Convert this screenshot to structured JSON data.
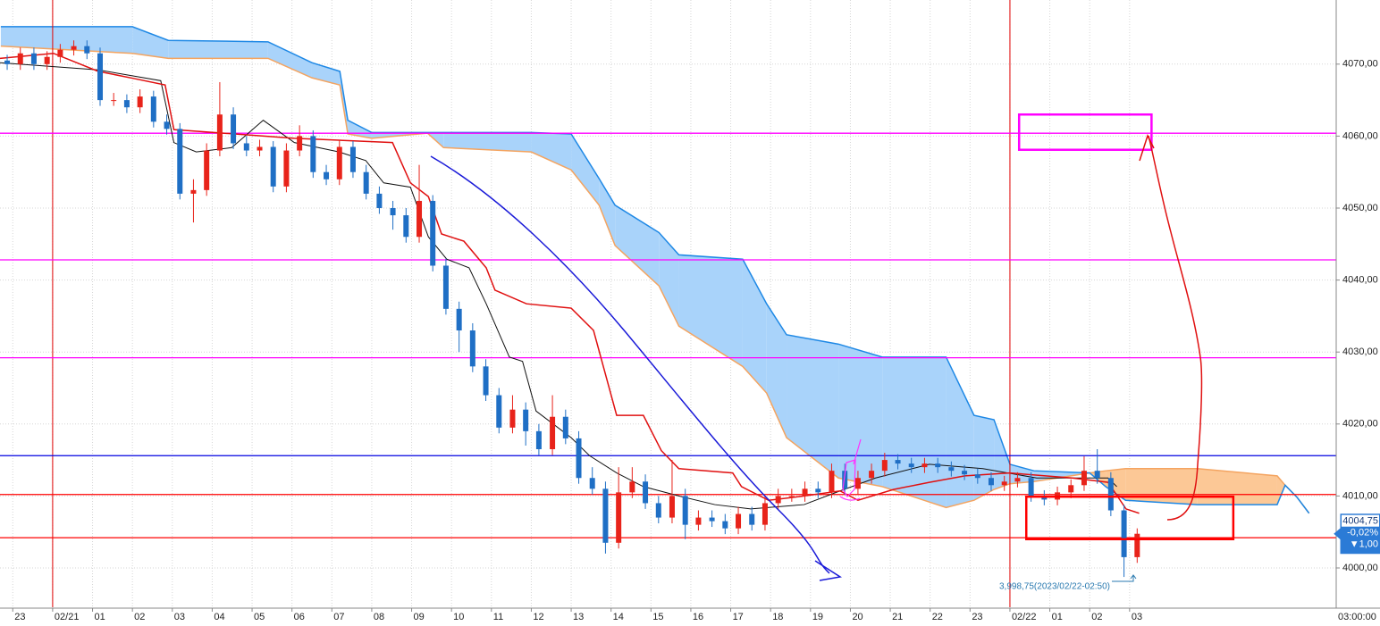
{
  "chart_data": {
    "type": "candlestick",
    "xlim": [
      -0.32,
      33.18
    ],
    "ylim": [
      3994.54,
      4078.91
    ],
    "xticks": [
      {
        "value": 0,
        "label": "23"
      },
      {
        "value": 1,
        "label": "02/21"
      },
      {
        "value": 2,
        "label": "01"
      },
      {
        "value": 3,
        "label": "02"
      },
      {
        "value": 4,
        "label": "03"
      },
      {
        "value": 5,
        "label": "04"
      },
      {
        "value": 6,
        "label": "05"
      },
      {
        "value": 7,
        "label": "06"
      },
      {
        "value": 8,
        "label": "07"
      },
      {
        "value": 9,
        "label": "08"
      },
      {
        "value": 10,
        "label": "09"
      },
      {
        "value": 11,
        "label": "10"
      },
      {
        "value": 12,
        "label": "11"
      },
      {
        "value": 13,
        "label": "12"
      },
      {
        "value": 14,
        "label": "13"
      },
      {
        "value": 15,
        "label": "14"
      },
      {
        "value": 16,
        "label": "15"
      },
      {
        "value": 17,
        "label": "16"
      },
      {
        "value": 18,
        "label": "17"
      },
      {
        "value": 19,
        "label": "18"
      },
      {
        "value": 20,
        "label": "19"
      },
      {
        "value": 21,
        "label": "20"
      },
      {
        "value": 22,
        "label": "21"
      },
      {
        "value": 23,
        "label": "22"
      },
      {
        "value": 24,
        "label": "23"
      },
      {
        "value": 25,
        "label": "02/22"
      },
      {
        "value": 26,
        "label": "01"
      },
      {
        "value": 27,
        "label": "02"
      },
      {
        "value": 28,
        "label": "03"
      }
    ],
    "x_end_label": "03:00:00",
    "yticks": [
      {
        "value": 4000,
        "label": "4000,00"
      },
      {
        "value": 4010,
        "label": "4010,00"
      },
      {
        "value": 4020,
        "label": "4020,00"
      },
      {
        "value": 4030,
        "label": "4030,00"
      },
      {
        "value": 4040,
        "label": "4040,00"
      },
      {
        "value": 4050,
        "label": "4050,00"
      },
      {
        "value": 4060,
        "label": "4060,00"
      },
      {
        "value": 4070,
        "label": "4070,00"
      }
    ],
    "grid": true,
    "day_lines": [
      1,
      25
    ],
    "day_line_color": "#e00000",
    "candles": {
      "up_color": "#e8231a",
      "down_color": "#1f6fc5",
      "x": [
        -0.14,
        0.19,
        0.53,
        0.86,
        1.19,
        1.53,
        1.86,
        2.19,
        2.53,
        2.86,
        3.19,
        3.53,
        3.86,
        4.19,
        4.53,
        4.86,
        5.19,
        5.53,
        5.86,
        6.19,
        6.53,
        6.86,
        7.19,
        7.53,
        7.86,
        8.19,
        8.53,
        8.86,
        9.19,
        9.53,
        9.86,
        10.19,
        10.53,
        10.86,
        11.19,
        11.53,
        11.86,
        12.19,
        12.53,
        12.86,
        13.19,
        13.53,
        13.86,
        14.19,
        14.53,
        14.86,
        15.19,
        15.53,
        15.86,
        16.19,
        16.53,
        16.86,
        17.19,
        17.53,
        17.86,
        18.19,
        18.53,
        18.86,
        19.19,
        19.53,
        19.86,
        20.19,
        20.53,
        20.86,
        21.19,
        21.53,
        21.86,
        22.19,
        22.53,
        22.86,
        23.19,
        23.53,
        23.86,
        24.19,
        24.53,
        24.86,
        25.19,
        25.53,
        25.86,
        26.19,
        26.53,
        26.86,
        27.19,
        27.53,
        27.86,
        28.19
      ],
      "open": [
        4070.5,
        4070,
        4071.5,
        4070,
        4071,
        4072,
        4072.5,
        4071.5,
        4065,
        4065,
        4064,
        4065.5,
        4062,
        4061,
        4052,
        4052.5,
        4058,
        4063,
        4059,
        4058,
        4058.5,
        4053,
        4058,
        4060,
        4055,
        4054,
        4058.5,
        4055,
        4052,
        4050,
        4049,
        4046,
        4051,
        4042,
        4036,
        4033,
        4028,
        4024,
        4019.5,
        4022,
        4019,
        4016.5,
        4021,
        4018,
        4012.5,
        4011,
        4003.5,
        4010.5,
        4012,
        4009,
        4007,
        4010,
        4006,
        4007,
        4006.5,
        4005.5,
        4007.5,
        4006,
        4009,
        4010,
        4010,
        4011,
        4010.5,
        4013.5,
        4011,
        4012.5,
        4013.5,
        4015,
        4014.5,
        4014,
        4014.5,
        4014,
        4013.5,
        4013,
        4012.5,
        4011.5,
        4012,
        4012.5,
        4010,
        4009.5,
        4010.5,
        4011.5,
        4013.5,
        4012.5,
        4008,
        4001.5
      ],
      "high": [
        4071.3,
        4072.3,
        4072.3,
        4071.8,
        4072.8,
        4073.3,
        4073.3,
        4072.3,
        4066,
        4065.8,
        4066.5,
        4066.3,
        4063,
        4061.8,
        4054,
        4059,
        4067.5,
        4064,
        4060,
        4059.5,
        4059.3,
        4059,
        4061.5,
        4060.8,
        4056,
        4059.5,
        4059.3,
        4056,
        4053,
        4051,
        4050,
        4056,
        4051.8,
        4043,
        4037,
        4034,
        4029,
        4025,
        4024,
        4023,
        4020,
        4024,
        4022,
        4019,
        4014,
        4012,
        4014,
        4014,
        4013,
        4010,
        4015,
        4011,
        4008,
        4008,
        4007.5,
        4008.5,
        4008.5,
        4010,
        4011,
        4011,
        4012,
        4012,
        4014.5,
        4014.5,
        4013.5,
        4014.5,
        4016,
        4015.8,
        4015.3,
        4015.3,
        4015.3,
        4014.8,
        4014.3,
        4013.8,
        4013.3,
        4012.8,
        4013.3,
        4013.3,
        4010.8,
        4011.3,
        4012.3,
        4015.5,
        4016.5,
        4013.3,
        4008.8,
        4005.5
      ],
      "low": [
        4069.2,
        4069.2,
        4069.2,
        4069.2,
        4070.2,
        4071.2,
        4070.7,
        4064.2,
        4064.2,
        4063.2,
        4063.2,
        4061.2,
        4060.2,
        4051.2,
        4048,
        4051.7,
        4057.2,
        4058.2,
        4057.2,
        4057.2,
        4052.2,
        4052.2,
        4057.2,
        4054.2,
        4053.2,
        4053.2,
        4054.2,
        4051.2,
        4049.2,
        4047,
        4045.2,
        4045.2,
        4041.2,
        4035.2,
        4030,
        4027.2,
        4023.2,
        4018.7,
        4018.7,
        4017,
        4015.7,
        4015.7,
        4017.2,
        4011.7,
        4010.2,
        4002,
        4002.7,
        4009.7,
        4008.2,
        4006.2,
        4006.2,
        4004,
        4005.2,
        4005.7,
        4004.7,
        4004.7,
        4005.2,
        4005.2,
        4008.2,
        4009.2,
        4009.2,
        4009.7,
        4009.7,
        4010.2,
        4010.2,
        4011.7,
        4012.7,
        4013.7,
        4013.2,
        4013.2,
        4013.2,
        4012.7,
        4012.2,
        4011.7,
        4010.7,
        4010.7,
        4011.2,
        4009.2,
        4008.7,
        4008.7,
        4009.7,
        4010.7,
        4011.7,
        4007.2,
        3998.75,
        4000.7
      ],
      "close": [
        4070,
        4071.5,
        4070,
        4071,
        4072,
        4072.5,
        4071.5,
        4065,
        4065,
        4064,
        4065.5,
        4062,
        4061,
        4052,
        4052.5,
        4058,
        4063,
        4059,
        4058,
        4058.5,
        4053,
        4058,
        4060,
        4055,
        4054,
        4058.5,
        4055,
        4052,
        4050,
        4049,
        4046,
        4051,
        4042,
        4036,
        4033,
        4028,
        4024,
        4019.5,
        4022,
        4019,
        4016.5,
        4021,
        4018,
        4012.5,
        4011,
        4003.5,
        4010.5,
        4012,
        4009,
        4007,
        4010,
        4006,
        4007,
        4006.5,
        4005.5,
        4007.5,
        4006,
        4009,
        4010,
        4010,
        4011,
        4010.5,
        4013.5,
        4011,
        4012.5,
        4013.5,
        4015,
        4014.5,
        4014,
        4014.5,
        4014,
        4013.5,
        4013,
        4012.5,
        4011.5,
        4012,
        4012.5,
        4010,
        4009.5,
        4010.5,
        4011.5,
        4013.5,
        4012.5,
        4008,
        4001.5,
        4004.75
      ]
    },
    "cloud": {
      "span_a_color": "#1e88e5",
      "span_b_color": "#f4a460",
      "fill_up": "#a9d3fa",
      "fill_down": "#fcc896",
      "x": [
        -0.3,
        3,
        3.9,
        6.4,
        7.5,
        8.2,
        8.4,
        9,
        10.4,
        10.8,
        13,
        14,
        14.7,
        15.1,
        16.2,
        16.7,
        18.3,
        18.9,
        19.4,
        20.7,
        21.8,
        23.4,
        24.1,
        24.6,
        25,
        25.6,
        27,
        27.4,
        27.9,
        29.7,
        31.7,
        31.9,
        32.2,
        32.5
      ],
      "span_a": [
        4075.2,
        4075.2,
        4073.3,
        4073.1,
        4070.2,
        4069,
        4062.2,
        4060.5,
        4060.5,
        4060.5,
        4060.5,
        4060.3,
        4054.1,
        4050.4,
        4046.6,
        4043.5,
        4042.9,
        4036.7,
        4032.4,
        4031.1,
        4029.3,
        4029.3,
        4021.2,
        4020.6,
        4014.4,
        4013.5,
        4013.2,
        4011.3,
        4009.4,
        4008.8,
        4008.8,
        4011.5,
        4009.8,
        4007.6
      ],
      "span_b": [
        4072.5,
        4071.5,
        4070.8,
        4070.8,
        4068.1,
        4067.1,
        4060.3,
        4059.7,
        4060.4,
        4058.4,
        4057.8,
        4055.3,
        4050.4,
        4044.8,
        4039.2,
        4033.6,
        4028,
        4024.3,
        4018.1,
        4012.5,
        4011.3,
        4008.4,
        4009.4,
        4010.9,
        4011.7,
        4012,
        4013.2,
        4013.5,
        4013.8,
        4013.8,
        4012.8,
        4011.5,
        4009.8,
        4007.6
      ]
    },
    "base_line": {
      "color": "#e01010",
      "x": [
        -0.32,
        1.02,
        2.14,
        3.04,
        3.82,
        4.04,
        7.06,
        9.52,
        9.97,
        10.42,
        10.75,
        11.31,
        11.87,
        12.09,
        12.88,
        14.0,
        14.56,
        15.14,
        15.81,
        16.26,
        16.7,
        18.05,
        18.27,
        18.95,
        19.84,
        20.74,
        21.19,
        22.08,
        22.98,
        23.87,
        24.99,
        26.56,
        27.46,
        27.91,
        28.24
      ],
      "values": [
        4070.8,
        4071.5,
        4069,
        4068,
        4067.1,
        4060.9,
        4059.7,
        4059.1,
        4053.5,
        4051.6,
        4046.4,
        4045.4,
        4041.7,
        4038.6,
        4036.7,
        4036.1,
        4033,
        4021.2,
        4021.2,
        4016.3,
        4013.8,
        4013.2,
        4011.3,
        4009.4,
        4010,
        4010.7,
        4009.4,
        4010.9,
        4011.9,
        4012.8,
        4013.2,
        4012.5,
        4011.9,
        4008.2,
        4007.6
      ]
    },
    "conversion_line": {
      "color": "#111111",
      "x": [
        -0.32,
        2.14,
        3.71,
        4.04,
        4.6,
        5.49,
        6.28,
        7.06,
        8.18,
        8.85,
        9.3,
        9.97,
        10.42,
        10.88,
        11.44,
        11.87,
        12.45,
        12.78,
        13.12,
        14.0,
        14.46,
        15.14,
        15.81,
        16.7,
        17.6,
        18.5,
        19.84,
        20.74,
        21.63,
        22.98,
        24.32,
        25.67,
        27.46,
        27.68
      ],
      "values": [
        4070.2,
        4069.2,
        4067.7,
        4059.1,
        4057.8,
        4058.4,
        4062.2,
        4059.1,
        4057.8,
        4056.6,
        4053.5,
        4052.9,
        4046,
        4042.9,
        4041.7,
        4036.7,
        4029.3,
        4028.7,
        4021.8,
        4018.1,
        4015.6,
        4013.2,
        4011.3,
        4010,
        4008.8,
        4008.2,
        4008.8,
        4010.7,
        4012.5,
        4014.4,
        4013.8,
        4012.5,
        4012.5,
        4011.3
      ]
    },
    "hlines": [
      {
        "value": 4060.4,
        "color": "#ff00ff"
      },
      {
        "value": 4042.8,
        "color": "#ff00ff"
      },
      {
        "value": 4029.2,
        "color": "#ff00ff"
      },
      {
        "value": 4015.6,
        "color": "#0000e0"
      },
      {
        "value": 4010.2,
        "color": "#ff0000"
      },
      {
        "value": 4004.2,
        "color": "#ff0000"
      }
    ],
    "boxes": [
      {
        "x": [
          25.23,
          28.55
        ],
        "y": [
          4058.1,
          4063
        ],
        "color": "#ff00ff"
      },
      {
        "x": [
          25.41,
          30.6
        ],
        "y": [
          4004,
          4009.9
        ],
        "color": "#ff0000"
      }
    ],
    "price_label": {
      "value": 4004.75,
      "label": "4004,75",
      "change": "-0,02%",
      "diff": "▼1,00",
      "color": "#2b7bd6"
    },
    "low_note": "3,998,75(2023/02/22-02:50)"
  }
}
